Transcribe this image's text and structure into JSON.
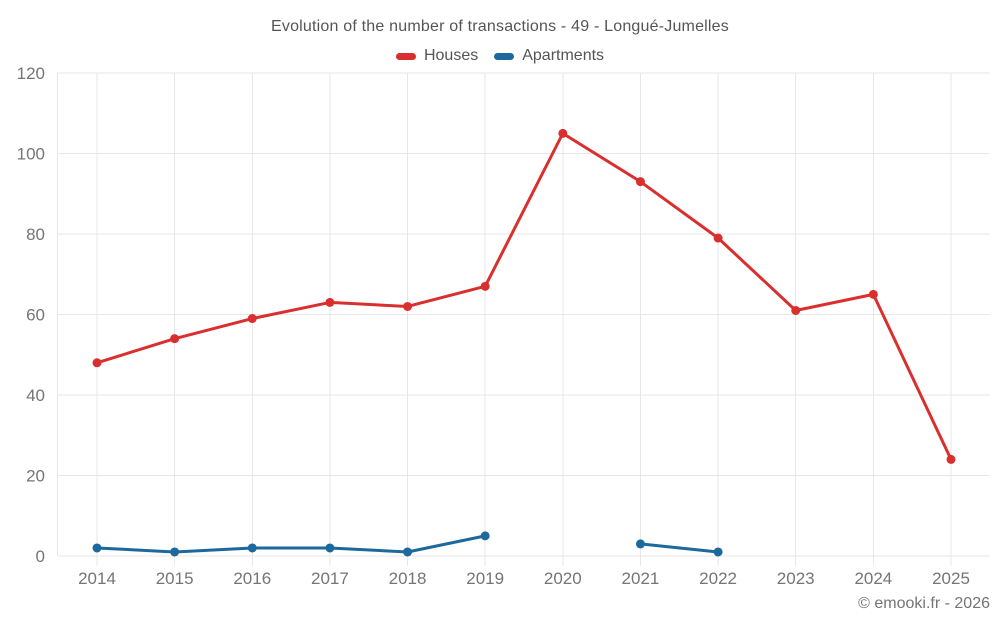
{
  "chart_data": {
    "type": "line",
    "title": "Evolution of the number of transactions - 49 - Longué-Jumelles",
    "x": [
      "2014",
      "2015",
      "2016",
      "2017",
      "2018",
      "2019",
      "2020",
      "2021",
      "2022",
      "2023",
      "2024",
      "2025"
    ],
    "series": [
      {
        "name": "Houses",
        "color": "#d92f2f",
        "values": [
          48,
          54,
          59,
          63,
          62,
          67,
          105,
          93,
          79,
          61,
          65,
          24
        ]
      },
      {
        "name": "Apartments",
        "color": "#1b699d",
        "values": [
          2,
          1,
          2,
          2,
          1,
          5,
          null,
          3,
          1,
          null,
          null,
          null
        ]
      }
    ],
    "xlabel": "",
    "ylabel": "",
    "ylim": [
      0,
      120
    ],
    "yticks": [
      0,
      20,
      40,
      60,
      80,
      100,
      120
    ],
    "grid": true,
    "legend_position": "top"
  },
  "footer": "© emooki.fr - 2026",
  "colors": {
    "background": "#ffffff",
    "grid": "#e7e7e7",
    "tick_label": "#757575",
    "title_text": "#555555",
    "houses": "#d92f2f",
    "apartments": "#1b699d"
  }
}
